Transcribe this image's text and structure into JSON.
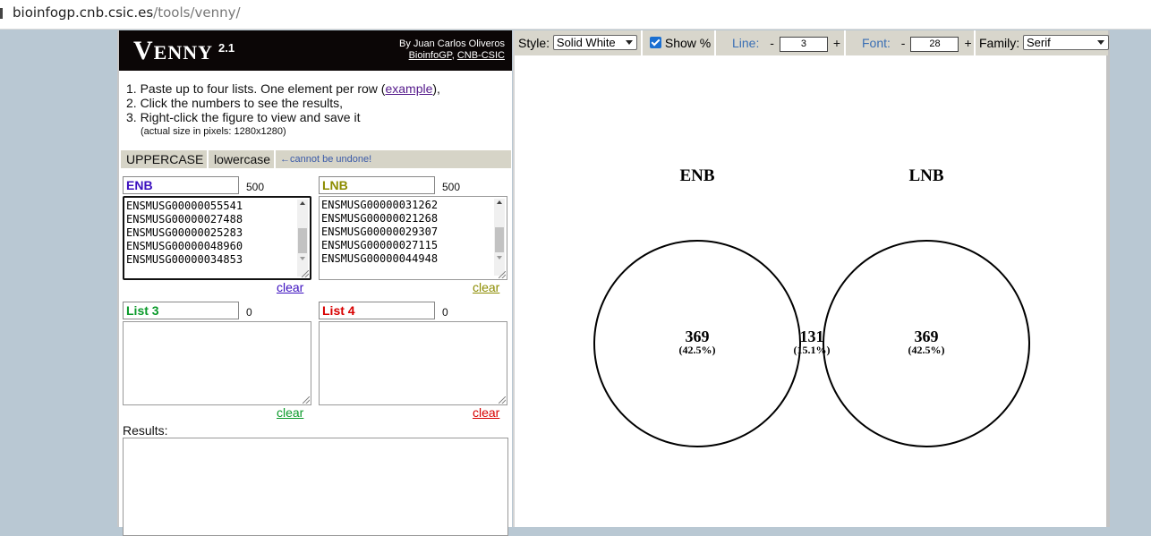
{
  "browser": {
    "host": "bioinfogp.cnb.csic.es",
    "path": "/tools/venny/"
  },
  "header": {
    "logo_v": "V",
    "logo_rest": "ENNY",
    "version": "2.1",
    "author": "By Juan Carlos Oliveros",
    "link1": "BioinfoGP",
    "comma": ", ",
    "link2": "CNB-CSIC"
  },
  "instructions": {
    "step1_pre": "1. Paste up to four lists. One element per row (",
    "step1_link": "example",
    "step1_post": "),",
    "step2": "2. Click the numbers to see the results,",
    "step3": "3. Right-click the figure to view and save it",
    "note": "(actual size in pixels: 1280x1280)"
  },
  "case": {
    "upper": "UPPERCASE",
    "lower": "lowercase",
    "note": "←cannot be undone!"
  },
  "lists": [
    {
      "name": "ENB",
      "count": "500",
      "color": "#3b0fbf",
      "clear": "clear",
      "items": [
        "ENSMUSG00000055541",
        "ENSMUSG00000027488",
        "ENSMUSG00000025283",
        "ENSMUSG00000048960",
        "ENSMUSG00000034853"
      ]
    },
    {
      "name": "LNB",
      "count": "500",
      "color": "#8c8c00",
      "clear": "clear",
      "items": [
        "ENSMUSG00000031262",
        "ENSMUSG00000021268",
        "ENSMUSG00000029307",
        "ENSMUSG00000027115",
        "ENSMUSG00000044948"
      ]
    },
    {
      "name": "List 3",
      "count": "0",
      "color": "#0a9a2a",
      "clear": "clear",
      "items": []
    },
    {
      "name": "List 4",
      "count": "0",
      "color": "#d80000",
      "clear": "clear",
      "items": []
    }
  ],
  "results_label": "Results:",
  "toolbar": {
    "style_label": "Style:",
    "style_value": "Solid White",
    "show_pct_label": "Show %",
    "line_label": "Line:",
    "line_value": "3",
    "font_label": "Font:",
    "font_value": "28",
    "family_label": "Family:",
    "family_value": "Serif",
    "minus": "-",
    "plus": "+"
  },
  "venn": {
    "set_a": "ENB",
    "set_b": "LNB",
    "only_a": "369",
    "only_a_pct": "(42.5%)",
    "both": "131",
    "both_pct": "(15.1%)",
    "only_b": "369",
    "only_b_pct": "(42.5%)"
  }
}
